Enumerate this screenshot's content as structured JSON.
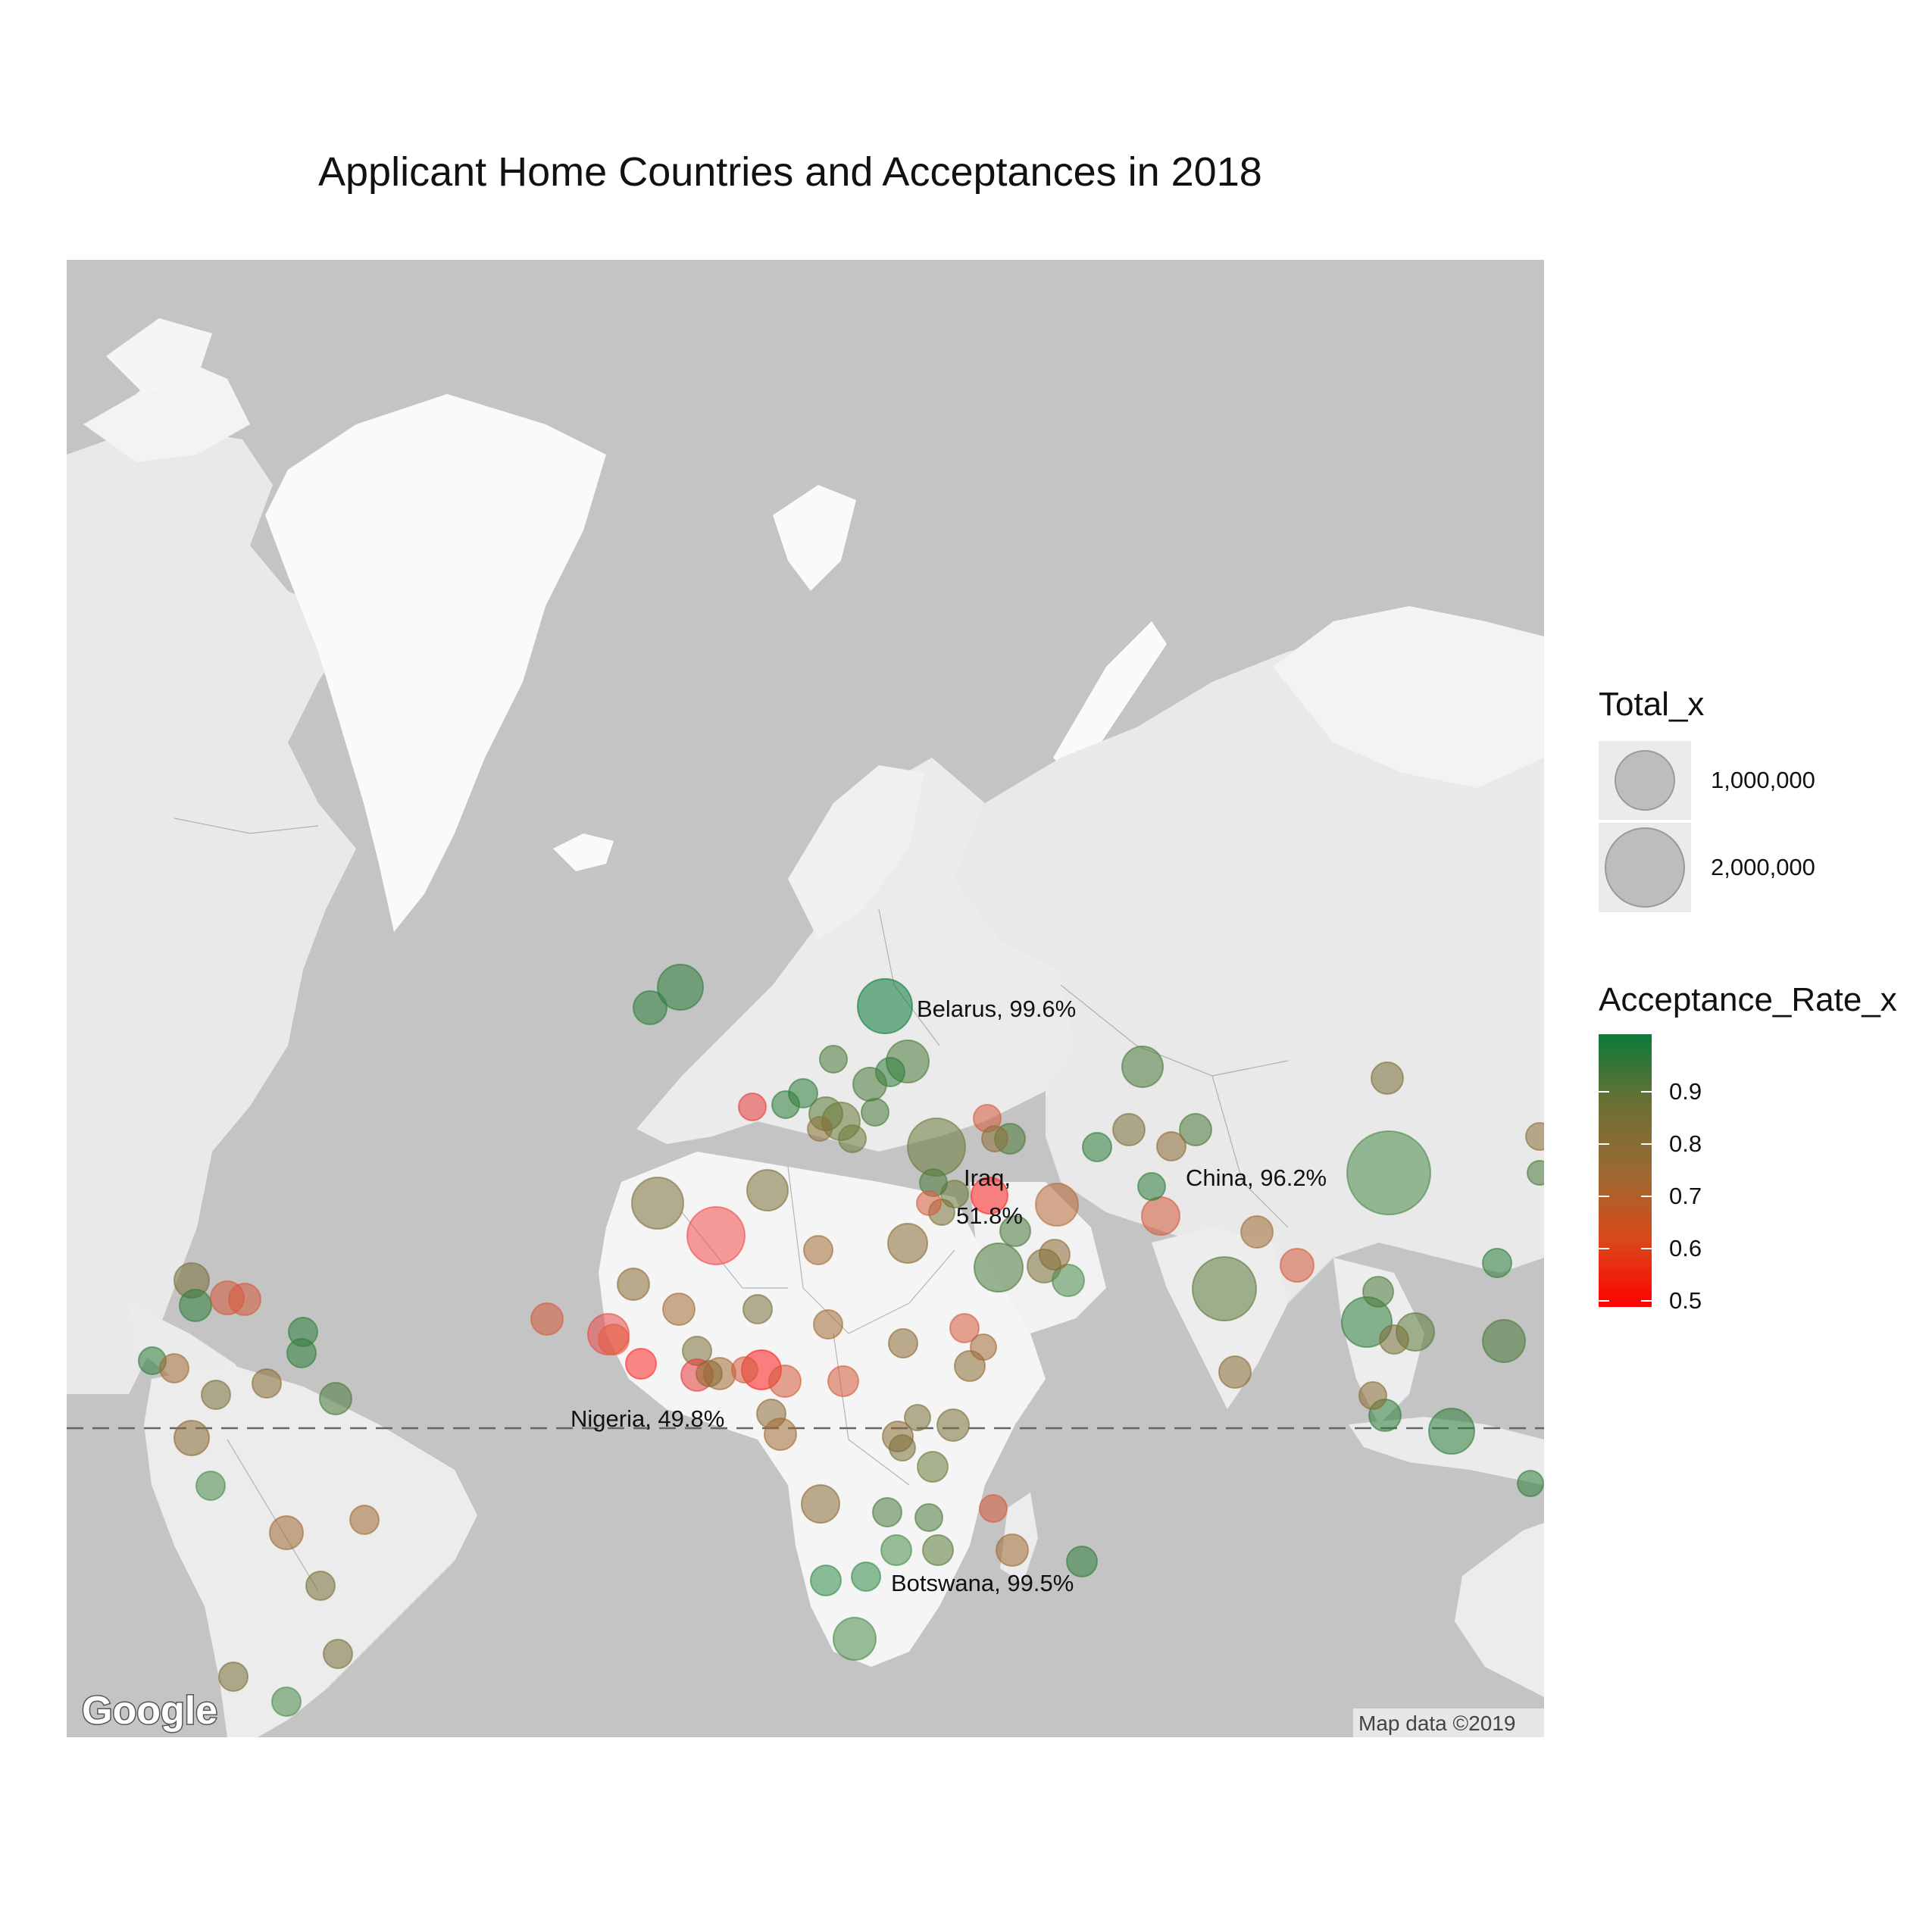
{
  "title": "Applicant Home Countries and Acceptances in 2018",
  "map": {
    "ocean_color": "#c4c4c4",
    "land_color": "#efefef",
    "land_white": "#fafafa",
    "google_logo": "Google",
    "attribution": "Map data ©2019",
    "equator_line": "dashed"
  },
  "annotations": [
    {
      "id": "belarus",
      "text": "Belarus, 99.6%"
    },
    {
      "id": "iraq",
      "lines": [
        "Iraq,",
        "51.8%"
      ]
    },
    {
      "id": "china",
      "text": "China, 96.2%"
    },
    {
      "id": "nigeria",
      "text": "Nigeria, 49.8%"
    },
    {
      "id": "botswana",
      "text": "Botswana, 99.5%"
    }
  ],
  "legend": {
    "size_title": "Total_x",
    "size_items": [
      {
        "label": "1,000,000",
        "value": 1000000
      },
      {
        "label": "2,000,000",
        "value": 2000000
      }
    ],
    "color_title": "Acceptance_Rate_x",
    "color_ticks": [
      "0.9",
      "0.8",
      "0.7",
      "0.6",
      "0.5"
    ],
    "color_low": "#ff0000",
    "color_high": "#0a7a3a"
  },
  "chart_data": {
    "type": "scatter",
    "title": "Applicant Home Countries and Acceptances in 2018",
    "size_variable": "Total_x",
    "color_variable": "Acceptance_Rate_x",
    "color_range": [
      0.5,
      1.0
    ],
    "labeled_points": [
      {
        "country": "Belarus",
        "acceptance_rate": 0.996
      },
      {
        "country": "Iraq",
        "acceptance_rate": 0.518
      },
      {
        "country": "China",
        "acceptance_rate": 0.962
      },
      {
        "country": "Nigeria",
        "acceptance_rate": 0.498
      },
      {
        "country": "Botswana",
        "acceptance_rate": 0.995
      }
    ]
  }
}
